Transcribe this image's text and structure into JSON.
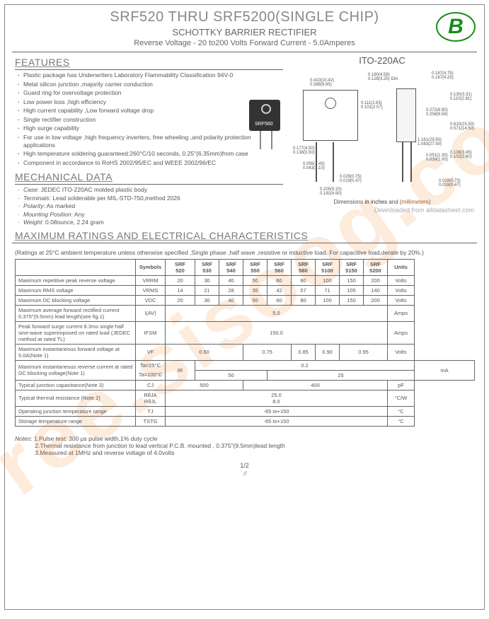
{
  "header": {
    "title": "SRF520 THRU SRF5200(SINGLE CHIP)",
    "subtitle": "SCHOTTKY BARRIER RECTIFIER",
    "subtitle2": "Reverse Voltage - 20 to200 Volts  Forward Current - 5.0Amperes"
  },
  "watermark": "ree.sisoog.co",
  "package_label": "ITO-220AC",
  "component_label": "SRF560",
  "dim_note_prefix": "Dimensions ",
  "dim_note_in": "in inches",
  "dim_note_and": " and (",
  "dim_note_mm": "millimeters",
  "dim_note_suffix": ")",
  "download_note": "Downloaded from alldatasheet.com",
  "section_features": "FEATURES",
  "section_mech": "MECHANICAL DATA",
  "section_ratings": "MAXIMUM RATINGS AND ELECTRICAL CHARACTERISTICS",
  "features": [
    "Plastic package has Underwriters Laboratory Flammability Classification 94V-0",
    "Metal silicon junction ,majority carrier conduction",
    "Guard ring for overvoltage protection",
    "Low power loss ,high efficiency",
    "High current capability ,Low forward voltage drop",
    "Single rectifier construction",
    "High surge capability",
    "For use in low voltage ,high frequency inverters, free wheeling ,and polarity protection applications",
    "High temperature soldering guaranteed:260°C/10 seconds, 0.25\"(6.35mm)from case",
    "Component in accordance to RoHS 2002/95/EC and WEEE 2002/96/EC"
  ],
  "mechanical": [
    {
      "k": "Case",
      "v": "JEDEC ITO-220AC  molded plastic body"
    },
    {
      "k": "Terminals",
      "v": "Lead solderable per MIL-STD-750,method 2026"
    },
    {
      "k": "Polarity",
      "v": "As marked"
    },
    {
      "k": "Mounting Position",
      "v": "Any"
    },
    {
      "k": "Weight",
      "v": "0.08ounce, 2.24 gram"
    }
  ],
  "ratings_note": "(Ratings at 25°C ambient temperature unless otherwise specified ,Single phase ,half wave ,resistive or inductive load. For capacitive load,derate by 20%.)",
  "parts": [
    "SRF 520",
    "SRF 530",
    "SRF 540",
    "SRF 550",
    "SRF 560",
    "SRF 580",
    "SRF 5100",
    "SRF 5150",
    "SRF 5200"
  ],
  "table_headers": {
    "param": "",
    "symbol": "Symbols",
    "units": "Units"
  },
  "rows": [
    {
      "label": "Maximum repetitive peak reverse voltage",
      "sym": "VRRM",
      "vals": [
        "20",
        "30",
        "40",
        "50",
        "60",
        "80",
        "100",
        "150",
        "200"
      ],
      "unit": "Volts"
    },
    {
      "label": "Maximum RMS voltage",
      "sym": "VRMS",
      "vals": [
        "14",
        "21",
        "28",
        "35",
        "42",
        "57",
        "71",
        "105",
        "140"
      ],
      "unit": "Volts"
    },
    {
      "label": "Maximum DC blocking voltage",
      "sym": "VDC",
      "vals": [
        "20",
        "30",
        "40",
        "50",
        "60",
        "80",
        "100",
        "150",
        "200"
      ],
      "unit": "Volts"
    },
    {
      "label": "Maximum average forward rectified current 0.375\"(9.5mm) lead length(see fig.1)",
      "sym": "I(AV)",
      "vals_span": "5.0",
      "unit": "Amps"
    },
    {
      "label": "Peak forward surge current 8.3ms single half sine-wave superimposed on rated load (JEDEC method at rated TL)",
      "sym": "IFSM",
      "vals_span": "150.0",
      "unit": "Amps"
    },
    {
      "label": "Maximum instantaneous forward voltage at 5.0A(Note 1)",
      "sym": "VF",
      "vals_groups": [
        [
          "0.60",
          3
        ],
        [
          "0.75",
          2
        ],
        [
          "0.85",
          1
        ],
        [
          "0.90",
          1
        ],
        [
          "0.95",
          2
        ]
      ],
      "unit": "Volts"
    },
    {
      "label": "Maximum instantaneous reverse current at rated DC blocking voltage(Note 1)",
      "sub": [
        "Ta=25°C",
        "Ta=100°C"
      ],
      "sym": "IR",
      "vals_rows": [
        [
          "0.2",
          9
        ],
        [
          "50",
          3,
          "25",
          6
        ]
      ],
      "unit": "mA"
    },
    {
      "label": "Typical junction capacitance(Note 3)",
      "sym": "CJ",
      "vals_groups": [
        [
          "500",
          3
        ],
        [
          "400",
          6
        ]
      ],
      "unit": "pF"
    },
    {
      "label": "Typical thermal resistance (Note 2)",
      "sym": "RθJA\nRθJL",
      "vals_rows2": [
        "25.0",
        "8.0"
      ],
      "unit": "°C/W"
    },
    {
      "label": "Operating junction temperature range",
      "sym": "TJ",
      "vals_span": "-65 to+150",
      "unit": "°C"
    },
    {
      "label": "Storage temperature range",
      "sym": "TSTG",
      "vals_span": "-65 to+150",
      "unit": "°C"
    }
  ],
  "notes_label": "Notes:",
  "notes": [
    "1.Pulse test: 300 μs pulse width,1% duty cycle",
    "2.Thermal resistance from junction to lead vertical P.C.B. mounted , 0.375\"(9.5mm)lead length",
    "3.Measured at 1MHz and reverse voltage of 4.0volts"
  ],
  "pagenum": "1/2",
  "url": "://",
  "dims": [
    {
      "t": "0.410(10.42)",
      "l": 28,
      "p": 14
    },
    {
      "t": "0.388(9.85)",
      "l": 28,
      "p": 20
    },
    {
      "t": "0.180(4.58)",
      "l": 110,
      "p": 6
    },
    {
      "t": "0.128(3.25) DIA",
      "l": 110,
      "p": 12
    },
    {
      "t": "0.111(2.83)",
      "l": 100,
      "p": 46
    },
    {
      "t": "0.101(2.57)",
      "l": 100,
      "p": 52
    },
    {
      "t": "0.177(4.50)",
      "l": 4,
      "p": 110
    },
    {
      "t": "0.138(3.50)",
      "l": 4,
      "p": 116
    },
    {
      "t": "0.056(1.43)",
      "l": 18,
      "p": 132
    },
    {
      "t": "0.043(1.10)",
      "l": 18,
      "p": 138
    },
    {
      "t": "0.029(0.75)",
      "l": 70,
      "p": 150
    },
    {
      "t": "0.019(0.47)",
      "l": 70,
      "p": 156
    },
    {
      "t": "0.205(5.20)",
      "l": 42,
      "p": 168
    },
    {
      "t": "0.192(4.90)",
      "l": 42,
      "p": 174
    },
    {
      "t": "0.187(4.75)",
      "l": 200,
      "p": 4
    },
    {
      "t": "0.167(4.25)",
      "l": 200,
      "p": 10
    },
    {
      "t": "0.130(3.31)",
      "l": 226,
      "p": 34
    },
    {
      "t": "0.110(2.81)",
      "l": 226,
      "p": 40
    },
    {
      "t": "0.272(6.90)",
      "l": 192,
      "p": 56
    },
    {
      "t": "0.258(6.56)",
      "l": 192,
      "p": 62
    },
    {
      "t": "0.610(15.50)",
      "l": 226,
      "p": 76
    },
    {
      "t": "0.571(14.50)",
      "l": 226,
      "p": 82
    },
    {
      "t": "1.161(29.50)",
      "l": 180,
      "p": 98
    },
    {
      "t": "1.083(27.50)",
      "l": 180,
      "p": 104
    },
    {
      "t": "0.051(1.30)",
      "l": 192,
      "p": 120
    },
    {
      "t": "0.039(1.00)",
      "l": 192,
      "p": 126
    },
    {
      "t": "0.138(3.45)",
      "l": 226,
      "p": 116
    },
    {
      "t": "0.102(2.60)",
      "l": 226,
      "p": 122
    },
    {
      "t": "0.029(0.73)",
      "l": 210,
      "p": 156
    },
    {
      "t": "0.019(0.47)",
      "l": 210,
      "p": 162
    }
  ]
}
